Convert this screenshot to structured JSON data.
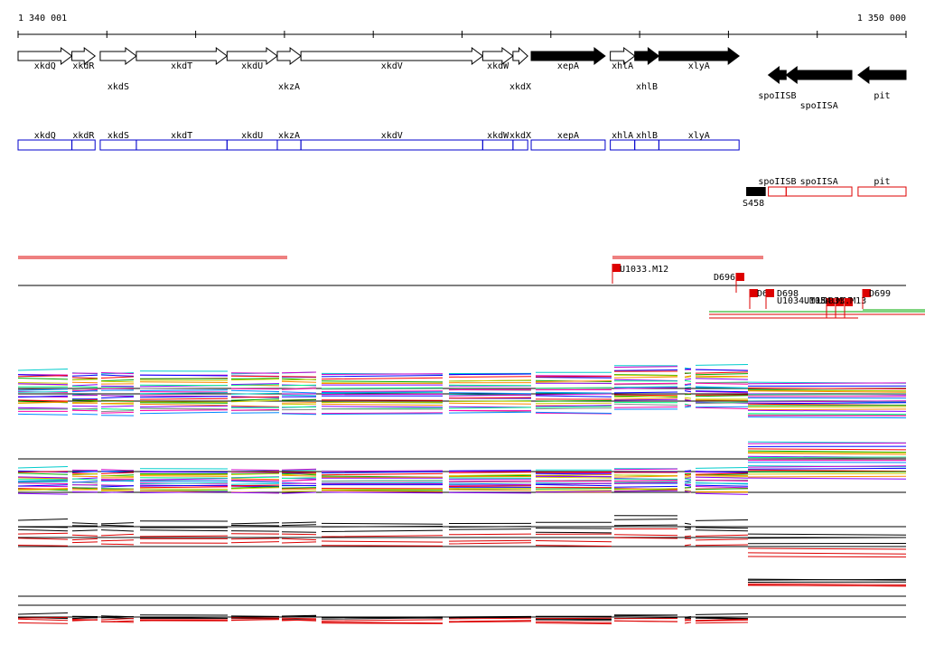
{
  "ruler": {
    "start_label": "1 340 001",
    "end_label": "1 350 000",
    "start_bp": 1340001,
    "end_bp": 1350000
  },
  "colors": {
    "outline": "#000000",
    "filled": "#000000",
    "blue": "#0000cc",
    "red": "#dd0000",
    "green": "#00aa00",
    "line": "#000000"
  },
  "genes": [
    {
      "id": "xkdQ",
      "label": "xkdQ",
      "start": 1340001,
      "end": 1340607,
      "strand": "+",
      "filled": false,
      "row": 0
    },
    {
      "id": "xkdR",
      "label": "xkdR",
      "start": 1340607,
      "end": 1340868,
      "strand": "+",
      "filled": false,
      "row": 0
    },
    {
      "id": "xkdS",
      "label": "xkdS",
      "start": 1340926,
      "end": 1341333,
      "strand": "+",
      "filled": false,
      "row": 1
    },
    {
      "id": "xkdT",
      "label": "xkdT",
      "start": 1341333,
      "end": 1342354,
      "strand": "+",
      "filled": false,
      "row": 0
    },
    {
      "id": "xkdU",
      "label": "xkdU",
      "start": 1342354,
      "end": 1342920,
      "strand": "+",
      "filled": false,
      "row": 0
    },
    {
      "id": "xkzA",
      "label": "xkzA",
      "start": 1342920,
      "end": 1343186,
      "strand": "+",
      "filled": false,
      "row": 1
    },
    {
      "id": "xkdV",
      "label": "xkdV",
      "start": 1343186,
      "end": 1345233,
      "strand": "+",
      "filled": false,
      "row": 0
    },
    {
      "id": "xkdW",
      "label": "xkdW",
      "start": 1345233,
      "end": 1345574,
      "strand": "+",
      "filled": false,
      "row": 0
    },
    {
      "id": "xkdX",
      "label": "xkdX",
      "start": 1345574,
      "end": 1345740,
      "strand": "+",
      "filled": false,
      "row": 1
    },
    {
      "id": "xepA",
      "label": "xepA",
      "start": 1345779,
      "end": 1346612,
      "strand": "+",
      "filled": true,
      "row": 0
    },
    {
      "id": "xhlA",
      "label": "xhlA",
      "start": 1346670,
      "end": 1346945,
      "strand": "+",
      "filled": false,
      "row": 0
    },
    {
      "id": "xhlB",
      "label": "xhlB",
      "start": 1346945,
      "end": 1347217,
      "strand": "+",
      "filled": true,
      "row": 1
    },
    {
      "id": "xlyA",
      "label": "xlyA",
      "start": 1347217,
      "end": 1348120,
      "strand": "+",
      "filled": true,
      "row": 0
    },
    {
      "id": "spoIISB",
      "label": "spoIISB",
      "start": 1348450,
      "end": 1348650,
      "strand": "-",
      "filled": true,
      "row": 1
    },
    {
      "id": "spoIISA",
      "label": "spoIISA",
      "start": 1348650,
      "end": 1349390,
      "strand": "-",
      "filled": true,
      "row": 2
    },
    {
      "id": "pit",
      "label": "pit",
      "start": 1349460,
      "end": 1350000,
      "strand": "-",
      "filled": true,
      "row": 1
    }
  ],
  "forward_boxes_labels": [
    "xkdQ",
    "xkdR",
    "xkdS",
    "xkdT",
    "xkdU",
    "xkzA",
    "xkdV",
    "xkdW",
    "xkdX",
    "xepA",
    "xhlA",
    "xhlB",
    "xlyA"
  ],
  "reverse_boxes_labels": [
    "spoIISB",
    "spoIISA",
    "pit"
  ],
  "s_feature": {
    "label": "S458",
    "start": 1348200,
    "end": 1348420
  },
  "transcripts": [
    {
      "label": "U1033.M12",
      "pos": 1346600
    },
    {
      "label": "D696",
      "pos": 1348100
    },
    {
      "label": "D6",
      "pos": 1348200
    },
    {
      "label": "D698",
      "pos": 1348390
    },
    {
      "label": "U1034.M15",
      "pos": 1349000
    },
    {
      "label": "U1034.M15",
      "pos": 1349100
    },
    {
      "label": "U1033.M13",
      "pos": 1349200
    },
    {
      "label": "D699",
      "pos": 1349450
    }
  ]
}
